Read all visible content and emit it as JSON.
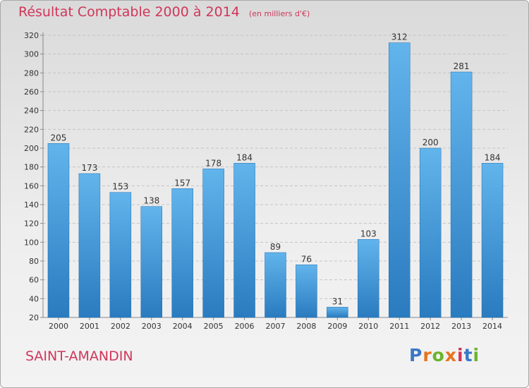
{
  "title": "Résultat Comptable 2000 à 2014",
  "unit_note": "(en milliers d'€)",
  "location": "SAINT-AMANDIN",
  "logo": {
    "text": "Proxiti",
    "colors": [
      "#3a78c8",
      "#e8731c",
      "#6ab42a",
      "#e8731c",
      "#d0365a",
      "#3a78c8",
      "#6ab42a"
    ]
  },
  "colors": {
    "title": "#d0365a",
    "bar_top": "#62b4ec",
    "bar_bottom": "#2a7bbf"
  },
  "chart_data": {
    "type": "bar",
    "categories": [
      "2000",
      "2001",
      "2002",
      "2003",
      "2004",
      "2005",
      "2006",
      "2007",
      "2008",
      "2009",
      "2010",
      "2011",
      "2012",
      "2013",
      "2014"
    ],
    "values": [
      205,
      173,
      153,
      138,
      157,
      178,
      184,
      89,
      76,
      31,
      103,
      312,
      200,
      281,
      184
    ],
    "ylim": [
      20,
      320
    ],
    "yticks": [
      20,
      40,
      60,
      80,
      100,
      120,
      140,
      160,
      180,
      200,
      220,
      240,
      260,
      280,
      300,
      320
    ],
    "grid": true,
    "data_labels": true
  }
}
